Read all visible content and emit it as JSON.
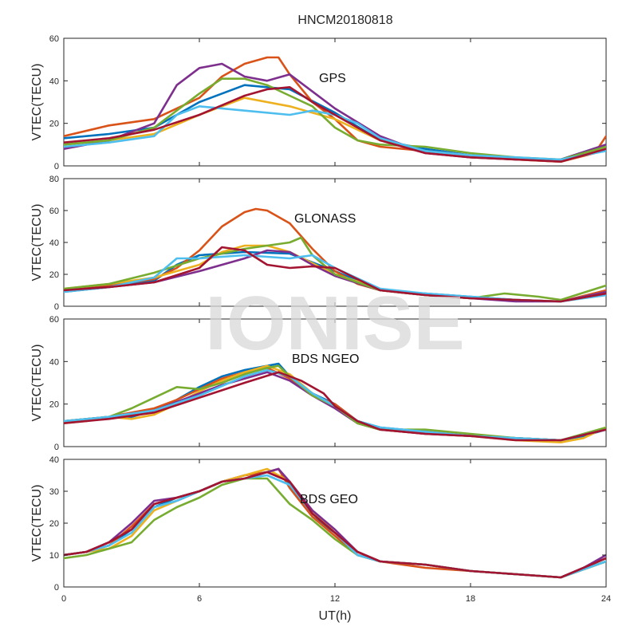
{
  "title": "HNCM20180818",
  "watermark": "IONISE",
  "xlabel": "UT(h)",
  "colors": [
    "#0072BD",
    "#D95319",
    "#EDB120",
    "#7E2F8E",
    "#77AC30",
    "#4DBEEE",
    "#A2142F"
  ],
  "chart_data": [
    {
      "type": "line",
      "panel_label": "GPS",
      "xlabel": "",
      "ylabel": "VTEC(TECU)",
      "xlim": [
        0,
        24
      ],
      "ylim": [
        0,
        60
      ],
      "xticks": [
        0,
        6,
        12,
        18,
        24
      ],
      "yticks": [
        0,
        20,
        40,
        60
      ],
      "series": [
        {
          "x": [
            0,
            2,
            4,
            6,
            8,
            10,
            12,
            14,
            16,
            18,
            20,
            22,
            24
          ],
          "y": [
            13,
            15,
            18,
            30,
            38,
            36,
            25,
            12,
            8,
            5,
            3,
            3,
            10
          ]
        },
        {
          "x": [
            0,
            2,
            4,
            6,
            7,
            8,
            9,
            9.5,
            10,
            11,
            12,
            13,
            14,
            16,
            18,
            20,
            22,
            23.5,
            24
          ],
          "y": [
            14,
            19,
            22,
            32,
            42,
            48,
            51,
            51,
            43,
            30,
            22,
            12,
            9,
            7,
            5,
            3,
            2,
            6,
            14
          ]
        },
        {
          "x": [
            0,
            2,
            4,
            6,
            8,
            10,
            12,
            14,
            16,
            18,
            20,
            22,
            24
          ],
          "y": [
            10,
            12,
            15,
            24,
            32,
            28,
            22,
            12,
            7,
            4,
            3,
            2,
            8
          ]
        },
        {
          "x": [
            0,
            2,
            4,
            5,
            6,
            7,
            8,
            9,
            10,
            11,
            12,
            14,
            16,
            18,
            20,
            22,
            24
          ],
          "y": [
            8,
            12,
            20,
            38,
            46,
            48,
            42,
            40,
            43,
            35,
            27,
            14,
            6,
            4,
            3,
            3,
            10
          ]
        },
        {
          "x": [
            0,
            2,
            4,
            6,
            7,
            8,
            9,
            10,
            11,
            12,
            13,
            14,
            16,
            18,
            20,
            22,
            24
          ],
          "y": [
            10,
            12,
            18,
            34,
            41,
            41,
            38,
            33,
            28,
            18,
            12,
            10,
            9,
            6,
            4,
            3,
            9
          ]
        },
        {
          "x": [
            0,
            2,
            4,
            5,
            6,
            8,
            10,
            11,
            12,
            13,
            14,
            16,
            18,
            20,
            22,
            24
          ],
          "y": [
            9,
            11,
            14,
            24,
            28,
            26,
            24,
            26,
            24,
            20,
            13,
            7,
            5,
            4,
            3,
            7
          ]
        },
        {
          "x": [
            0,
            2,
            4,
            6,
            8,
            9,
            10,
            11,
            12,
            14,
            16,
            18,
            20,
            22,
            24
          ],
          "y": [
            11,
            13,
            17,
            24,
            33,
            36,
            37,
            30,
            24,
            12,
            6,
            4,
            3,
            2,
            8
          ]
        }
      ]
    },
    {
      "type": "line",
      "panel_label": "GLONASS",
      "xlabel": "",
      "ylabel": "VTEC(TECU)",
      "xlim": [
        0,
        24
      ],
      "ylim": [
        0,
        80
      ],
      "xticks": [
        0,
        6,
        12,
        18,
        24
      ],
      "yticks": [
        0,
        20,
        40,
        60,
        80
      ],
      "series": [
        {
          "x": [
            0,
            2,
            4,
            5,
            6,
            8,
            10,
            12,
            14,
            16,
            18,
            20,
            22,
            24
          ],
          "y": [
            9,
            12,
            16,
            26,
            32,
            34,
            33,
            22,
            10,
            8,
            6,
            4,
            3,
            8
          ]
        },
        {
          "x": [
            0,
            2,
            4,
            5,
            6,
            7,
            8,
            8.5,
            9,
            10,
            11,
            12,
            13,
            14,
            16,
            18,
            20,
            22,
            24
          ],
          "y": [
            10,
            13,
            17,
            24,
            35,
            50,
            59,
            61,
            60,
            52,
            36,
            22,
            14,
            10,
            7,
            5,
            4,
            3,
            10
          ]
        },
        {
          "x": [
            0,
            2,
            4,
            6,
            7,
            8,
            9,
            10,
            11,
            12,
            14,
            16,
            18,
            20,
            22,
            24
          ],
          "y": [
            11,
            14,
            18,
            26,
            34,
            38,
            38,
            34,
            27,
            20,
            11,
            7,
            5,
            4,
            3,
            9
          ]
        },
        {
          "x": [
            0,
            2,
            4,
            6,
            8,
            9,
            10,
            11,
            12,
            14,
            16,
            18,
            20,
            22,
            24
          ],
          "y": [
            10,
            12,
            15,
            22,
            30,
            35,
            34,
            26,
            19,
            10,
            7,
            5,
            3,
            3,
            9
          ]
        },
        {
          "x": [
            0,
            2,
            4,
            6,
            8,
            10,
            10.5,
            11,
            12,
            14,
            16,
            18,
            19.5,
            21,
            22,
            24
          ],
          "y": [
            11,
            14,
            21,
            30,
            36,
            40,
            43,
            32,
            20,
            10,
            7,
            5,
            8,
            6,
            4,
            13
          ]
        },
        {
          "x": [
            0,
            2,
            4,
            5,
            6,
            8,
            10,
            11,
            12,
            14,
            16,
            18,
            20,
            22,
            24
          ],
          "y": [
            9,
            12,
            18,
            30,
            30,
            32,
            30,
            32,
            24,
            11,
            8,
            6,
            4,
            3,
            7
          ]
        },
        {
          "x": [
            0,
            2,
            4,
            6,
            7,
            8,
            9,
            10,
            11,
            12,
            13,
            14,
            16,
            18,
            20,
            22,
            24
          ],
          "y": [
            10,
            12,
            15,
            24,
            37,
            35,
            26,
            24,
            25,
            24,
            17,
            10,
            7,
            5,
            4,
            3,
            8
          ]
        }
      ]
    },
    {
      "type": "line",
      "panel_label": "BDS NGEO",
      "xlabel": "",
      "ylabel": "VTEC(TECU)",
      "xlim": [
        0,
        24
      ],
      "ylim": [
        0,
        60
      ],
      "xticks": [
        0,
        6,
        12,
        18,
        24
      ],
      "yticks": [
        0,
        20,
        40,
        60
      ],
      "series": [
        {
          "x": [
            0,
            1,
            2,
            3,
            4,
            5,
            6,
            7,
            8,
            9,
            9.5,
            10,
            11,
            12,
            13,
            14,
            16,
            18,
            20,
            22,
            23,
            24
          ],
          "y": [
            12,
            12,
            14,
            14,
            17,
            22,
            28,
            33,
            36,
            38,
            39,
            33,
            25,
            20,
            12,
            9,
            7,
            5,
            4,
            3,
            5,
            8
          ]
        },
        {
          "x": [
            0,
            2,
            4,
            5,
            6,
            7,
            8,
            9,
            10,
            11,
            12,
            13,
            14,
            16,
            18,
            20,
            22,
            24
          ],
          "y": [
            12,
            14,
            18,
            22,
            27,
            32,
            35,
            37,
            32,
            24,
            20,
            12,
            8,
            7,
            5,
            4,
            3,
            8
          ]
        },
        {
          "x": [
            0,
            1,
            2,
            3,
            4,
            5,
            6,
            7,
            8,
            9,
            10,
            11,
            12,
            13,
            14,
            16,
            18,
            20,
            22,
            23,
            24
          ],
          "y": [
            11,
            12,
            14,
            13,
            15,
            20,
            26,
            31,
            35,
            38,
            34,
            25,
            19,
            11,
            8,
            6,
            5,
            3,
            2,
            4,
            9
          ]
        },
        {
          "x": [
            0,
            2,
            4,
            6,
            7,
            8,
            9,
            10,
            11,
            12,
            13,
            14,
            16,
            18,
            20,
            22,
            24
          ],
          "y": [
            12,
            14,
            17,
            25,
            29,
            32,
            35,
            31,
            24,
            18,
            11,
            8,
            6,
            5,
            4,
            3,
            8
          ]
        },
        {
          "x": [
            0,
            2,
            3,
            4,
            5,
            6,
            7,
            8,
            9,
            9.5,
            10,
            11,
            12,
            13,
            14,
            16,
            18,
            20,
            22,
            24
          ],
          "y": [
            12,
            14,
            18,
            23,
            28,
            27,
            30,
            34,
            37,
            38,
            33,
            24,
            19,
            11,
            8,
            8,
            6,
            4,
            3,
            9
          ]
        },
        {
          "x": [
            0,
            2,
            4,
            6,
            8,
            9,
            10,
            11,
            12,
            13,
            14,
            16,
            18,
            20,
            22,
            24
          ],
          "y": [
            12,
            14,
            17,
            24,
            33,
            36,
            33,
            25,
            19,
            12,
            9,
            7,
            5,
            4,
            3,
            8
          ]
        },
        {
          "x": [
            0,
            2,
            4,
            6,
            8,
            9.5,
            10.5,
            11.5,
            12,
            13,
            14,
            16,
            18,
            20,
            22,
            24
          ],
          "y": [
            11,
            13,
            16,
            23,
            30,
            35,
            31,
            25,
            19,
            12,
            8,
            6,
            5,
            3,
            3,
            8
          ]
        }
      ]
    },
    {
      "type": "line",
      "panel_label": "BDS GEO",
      "xlabel": "UT(h)",
      "ylabel": "VTEC(TECU)",
      "xlim": [
        0,
        24
      ],
      "ylim": [
        0,
        40
      ],
      "xticks": [
        0,
        6,
        12,
        18,
        24
      ],
      "yticks": [
        0,
        10,
        20,
        30,
        40
      ],
      "series": [
        {
          "x": [
            0,
            1,
            2,
            3,
            4,
            5,
            6,
            7,
            8,
            9,
            9.5,
            10,
            11,
            12,
            13,
            14,
            16,
            18,
            20,
            22,
            23,
            24
          ],
          "y": [
            10,
            11,
            13,
            18,
            25,
            28,
            30,
            33,
            35,
            36,
            37,
            32,
            22,
            17,
            10,
            8,
            7,
            5,
            4,
            3,
            6,
            9
          ]
        },
        {
          "x": [
            0,
            1,
            2,
            3,
            4,
            5,
            6,
            7,
            8,
            9,
            9.5,
            10,
            11,
            12,
            13,
            14,
            16,
            18,
            20,
            22,
            24
          ],
          "y": [
            10,
            11,
            13,
            19,
            26,
            28,
            30,
            33,
            35,
            36,
            37,
            31,
            22,
            16,
            10,
            8,
            6,
            5,
            4,
            3,
            8
          ]
        },
        {
          "x": [
            0,
            1,
            2,
            3,
            4,
            5,
            6,
            7,
            8,
            9,
            10,
            11,
            12,
            13,
            14,
            16,
            18,
            20,
            22,
            24
          ],
          "y": [
            10,
            11,
            12,
            16,
            24,
            27,
            30,
            33,
            35,
            37,
            33,
            24,
            17,
            11,
            8,
            7,
            5,
            4,
            3,
            8
          ]
        },
        {
          "x": [
            0,
            1,
            2,
            3,
            4,
            5,
            6,
            7,
            8,
            9,
            9.5,
            10,
            11,
            12,
            13,
            14,
            16,
            18,
            20,
            22,
            23,
            24
          ],
          "y": [
            10,
            11,
            14,
            20,
            27,
            28,
            30,
            33,
            34,
            36,
            37,
            33,
            24,
            18,
            11,
            8,
            7,
            5,
            4,
            3,
            6,
            10
          ]
        },
        {
          "x": [
            0,
            1,
            2,
            3,
            4,
            5,
            6,
            7,
            8,
            9,
            10,
            11,
            12,
            13,
            14,
            16,
            18,
            20,
            22,
            24
          ],
          "y": [
            9,
            10,
            12,
            14,
            21,
            25,
            28,
            32,
            34,
            34,
            26,
            21,
            15,
            10,
            8,
            7,
            5,
            4,
            3,
            8
          ]
        },
        {
          "x": [
            0,
            1,
            2,
            3,
            4,
            5,
            6,
            7,
            8,
            9,
            10,
            11,
            12,
            13,
            14,
            16,
            18,
            20,
            22,
            24
          ],
          "y": [
            10,
            11,
            13,
            17,
            25,
            27,
            30,
            33,
            34,
            35,
            32,
            23,
            17,
            10,
            8,
            7,
            5,
            4,
            3,
            8
          ]
        },
        {
          "x": [
            0,
            1,
            2,
            3,
            4,
            5,
            6,
            7,
            8,
            9,
            10,
            11,
            12,
            13,
            14,
            16,
            18,
            20,
            22,
            24
          ],
          "y": [
            10,
            11,
            14,
            18,
            26,
            28,
            30,
            33,
            34,
            36,
            33,
            23,
            17,
            11,
            8,
            7,
            5,
            4,
            3,
            9
          ]
        }
      ]
    }
  ]
}
